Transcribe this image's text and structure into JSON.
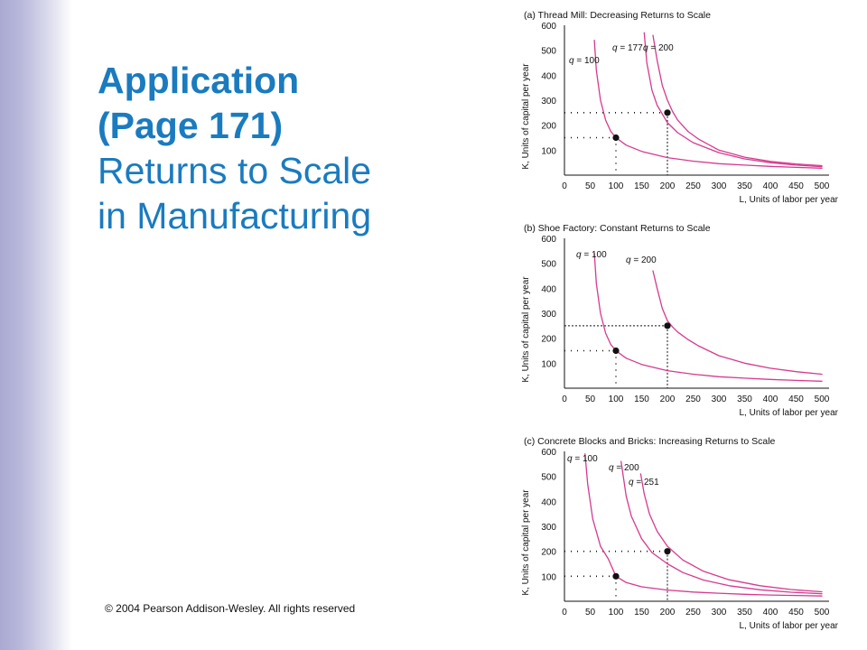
{
  "slide": {
    "title_line1": "Application",
    "title_line2": "(Page 171)",
    "title_line3": "Returns to Scale",
    "title_line4": "in Manufacturing",
    "copyright": "© 2004 Pearson Addison-Wesley. All rights reserved",
    "colors": {
      "title": "#1a7bbf",
      "curve": "#d63a8e",
      "band": "#b4b4d8"
    }
  },
  "chart_data": [
    {
      "type": "line",
      "title": "(a) Thread Mill: Decreasing Returns to Scale",
      "xlabel": "L, Units of labor per year",
      "ylabel": "K, Units of capital per year",
      "xlim": [
        0,
        500
      ],
      "ylim": [
        0,
        600
      ],
      "xticks": [
        0,
        50,
        100,
        150,
        200,
        250,
        300,
        350,
        400,
        450,
        500
      ],
      "yticks": [
        100,
        200,
        300,
        400,
        500,
        600
      ],
      "series": [
        {
          "name": "q = 100",
          "x": [
            58,
            62,
            70,
            80,
            90,
            100,
            120,
            150,
            200,
            250,
            300,
            350,
            400,
            450,
            500
          ],
          "y": [
            540,
            420,
            300,
            220,
            175,
            150,
            120,
            95,
            70,
            56,
            46,
            40,
            35,
            31,
            28
          ]
        },
        {
          "name": "q = 177",
          "x": [
            155,
            160,
            170,
            180,
            200,
            220,
            250,
            300,
            350,
            400,
            450,
            500
          ],
          "y": [
            570,
            450,
            340,
            280,
            210,
            170,
            130,
            90,
            65,
            50,
            40,
            34
          ]
        },
        {
          "name": "q = 200",
          "x": [
            172,
            180,
            190,
            200,
            210,
            220,
            240,
            260,
            300,
            350,
            400,
            450,
            500
          ],
          "y": [
            560,
            460,
            360,
            300,
            255,
            220,
            175,
            145,
            100,
            72,
            55,
            45,
            38
          ]
        }
      ],
      "points": [
        {
          "x": 100,
          "y": 150
        },
        {
          "x": 200,
          "y": 250
        }
      ]
    },
    {
      "type": "line",
      "title": "(b) Shoe Factory: Constant Returns to Scale",
      "xlabel": "L, Units of labor per year",
      "ylabel": "K, Units of capital per year",
      "xlim": [
        0,
        500
      ],
      "ylim": [
        0,
        600
      ],
      "xticks": [
        0,
        50,
        100,
        150,
        200,
        250,
        300,
        350,
        400,
        450,
        500
      ],
      "yticks": [
        100,
        200,
        300,
        400,
        500,
        600
      ],
      "series": [
        {
          "name": "q = 100",
          "x": [
            58,
            62,
            70,
            80,
            90,
            100,
            120,
            150,
            200,
            250,
            300,
            350,
            400,
            450,
            500
          ],
          "y": [
            540,
            420,
            300,
            220,
            175,
            150,
            120,
            95,
            70,
            56,
            46,
            40,
            35,
            31,
            28
          ]
        },
        {
          "name": "q = 200",
          "x": [
            172,
            180,
            190,
            200,
            210,
            220,
            240,
            260,
            300,
            350,
            400,
            450,
            500
          ],
          "y": [
            470,
            400,
            320,
            270,
            245,
            225,
            195,
            170,
            130,
            100,
            80,
            66,
            56
          ]
        }
      ],
      "points": [
        {
          "x": 100,
          "y": 150
        },
        {
          "x": 200,
          "y": 250
        }
      ]
    },
    {
      "type": "line",
      "title": "(c) Concrete Blocks and Bricks: Increasing Returns to Scale",
      "xlabel": "L, Units of labor per year",
      "ylabel": "K, Units of capital per year",
      "xlim": [
        0,
        500
      ],
      "ylim": [
        0,
        600
      ],
      "xticks": [
        0,
        50,
        100,
        150,
        200,
        250,
        300,
        350,
        400,
        450,
        500
      ],
      "yticks": [
        100,
        200,
        300,
        400,
        500,
        600
      ],
      "series": [
        {
          "name": "q = 100",
          "x": [
            40,
            45,
            55,
            70,
            85,
            100,
            120,
            150,
            200,
            250,
            300,
            350,
            400,
            450,
            500
          ],
          "y": [
            590,
            470,
            330,
            220,
            170,
            100,
            75,
            58,
            45,
            37,
            32,
            28,
            25,
            23,
            21
          ]
        },
        {
          "name": "q = 200",
          "x": [
            110,
            120,
            130,
            150,
            170,
            200,
            230,
            270,
            320,
            380,
            440,
            500
          ],
          "y": [
            560,
            420,
            340,
            250,
            195,
            150,
            115,
            85,
            62,
            46,
            36,
            30
          ]
        },
        {
          "name": "q = 251",
          "x": [
            148,
            155,
            165,
            180,
            200,
            230,
            270,
            320,
            380,
            440,
            500
          ],
          "y": [
            510,
            430,
            350,
            280,
            220,
            165,
            120,
            86,
            62,
            47,
            38
          ]
        }
      ],
      "points": [
        {
          "x": 100,
          "y": 100
        },
        {
          "x": 200,
          "y": 200
        }
      ]
    }
  ]
}
